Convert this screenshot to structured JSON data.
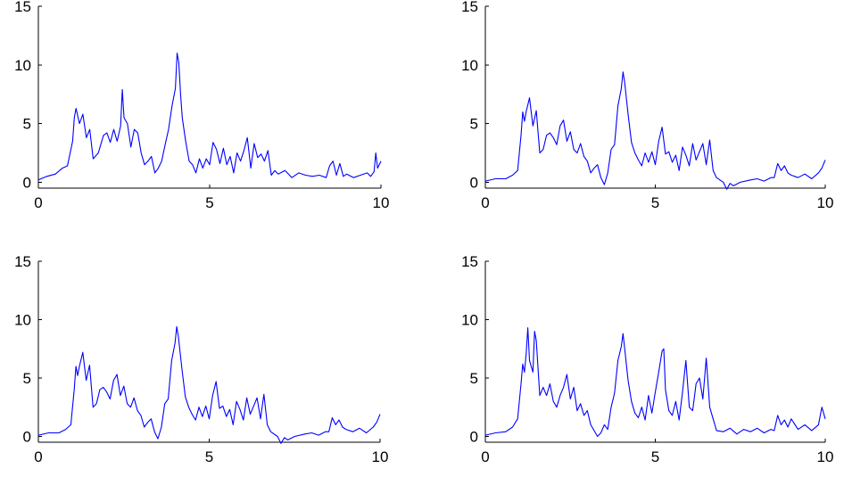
{
  "chart_data": [
    {
      "type": "line",
      "xlim": [
        0,
        10
      ],
      "ylim": [
        -0.5,
        15
      ],
      "xticks": [
        0,
        5,
        10
      ],
      "yticks": [
        0,
        5,
        10,
        15
      ],
      "grid": false,
      "series": [
        {
          "color": "#0000ff",
          "x": [
            0,
            0.25,
            0.5,
            0.7,
            0.85,
            1.0,
            1.05,
            1.1,
            1.2,
            1.3,
            1.4,
            1.5,
            1.6,
            1.75,
            1.9,
            2.0,
            2.1,
            2.2,
            2.3,
            2.4,
            2.45,
            2.5,
            2.6,
            2.7,
            2.8,
            2.9,
            3.0,
            3.1,
            3.2,
            3.3,
            3.4,
            3.5,
            3.6,
            3.7,
            3.8,
            3.9,
            4.0,
            4.05,
            4.1,
            4.15,
            4.2,
            4.3,
            4.4,
            4.5,
            4.6,
            4.7,
            4.8,
            4.9,
            5.0,
            5.1,
            5.2,
            5.3,
            5.4,
            5.5,
            5.6,
            5.7,
            5.8,
            5.9,
            6.0,
            6.1,
            6.2,
            6.3,
            6.4,
            6.5,
            6.6,
            6.7,
            6.8,
            6.9,
            7.0,
            7.2,
            7.4,
            7.6,
            7.8,
            8.0,
            8.2,
            8.4,
            8.5,
            8.6,
            8.7,
            8.8,
            8.9,
            9.0,
            9.2,
            9.4,
            9.6,
            9.7,
            9.8,
            9.85,
            9.9,
            10.0
          ],
          "y": [
            0.2,
            0.5,
            0.7,
            1.2,
            1.4,
            3.5,
            5.5,
            6.3,
            5.0,
            5.8,
            3.8,
            4.5,
            2.0,
            2.5,
            4.0,
            4.2,
            3.4,
            4.5,
            3.5,
            4.8,
            7.9,
            5.5,
            5.0,
            3.0,
            4.5,
            4.2,
            2.5,
            1.5,
            1.8,
            2.2,
            0.8,
            1.2,
            1.8,
            3.2,
            4.5,
            6.5,
            8.0,
            11.0,
            10.2,
            7.5,
            5.5,
            3.5,
            1.8,
            1.5,
            0.8,
            2.0,
            1.2,
            2.0,
            1.5,
            3.4,
            2.8,
            1.6,
            2.9,
            1.5,
            2.2,
            0.8,
            2.5,
            1.8,
            2.7,
            3.8,
            1.2,
            3.3,
            2.1,
            2.4,
            1.8,
            2.7,
            0.6,
            1.0,
            0.7,
            1.0,
            0.4,
            0.8,
            0.6,
            0.5,
            0.6,
            0.4,
            1.4,
            1.8,
            0.6,
            1.6,
            0.5,
            0.7,
            0.4,
            0.6,
            0.8,
            0.5,
            0.9,
            2.5,
            1.2,
            1.8
          ]
        }
      ]
    },
    {
      "type": "line",
      "xlim": [
        0,
        10
      ],
      "ylim": [
        -0.5,
        15
      ],
      "xticks": [
        0,
        5,
        10
      ],
      "yticks": [
        0,
        5,
        10,
        15
      ],
      "grid": false,
      "series": [
        {
          "color": "#0000ff",
          "x": [
            0,
            0.3,
            0.6,
            0.8,
            0.95,
            1.05,
            1.1,
            1.15,
            1.2,
            1.3,
            1.4,
            1.5,
            1.6,
            1.7,
            1.8,
            1.9,
            2.0,
            2.1,
            2.2,
            2.3,
            2.4,
            2.5,
            2.6,
            2.7,
            2.8,
            2.9,
            3.0,
            3.1,
            3.2,
            3.3,
            3.4,
            3.5,
            3.6,
            3.7,
            3.8,
            3.9,
            4.0,
            4.05,
            4.1,
            4.2,
            4.3,
            4.4,
            4.5,
            4.6,
            4.7,
            4.8,
            4.9,
            5.0,
            5.1,
            5.2,
            5.3,
            5.4,
            5.5,
            5.6,
            5.7,
            5.8,
            5.9,
            6.0,
            6.1,
            6.2,
            6.3,
            6.4,
            6.5,
            6.6,
            6.7,
            6.8,
            7.0,
            7.1,
            7.2,
            7.3,
            7.5,
            7.8,
            8.0,
            8.2,
            8.4,
            8.5,
            8.6,
            8.7,
            8.8,
            8.9,
            9.0,
            9.2,
            9.4,
            9.6,
            9.8,
            9.9,
            10.0
          ],
          "y": [
            0.1,
            0.3,
            0.3,
            0.6,
            1.0,
            4.0,
            6.0,
            5.2,
            6.0,
            7.2,
            4.8,
            6.1,
            2.5,
            2.8,
            4.0,
            4.2,
            3.8,
            3.2,
            4.8,
            5.3,
            3.5,
            4.3,
            2.8,
            2.5,
            3.3,
            2.2,
            1.8,
            0.8,
            1.2,
            1.5,
            0.4,
            -0.2,
            0.8,
            2.8,
            3.2,
            6.5,
            8.0,
            9.4,
            8.5,
            5.8,
            3.4,
            2.5,
            1.9,
            1.4,
            2.5,
            1.7,
            2.6,
            1.5,
            3.5,
            4.7,
            2.4,
            2.6,
            1.7,
            2.3,
            1.0,
            3.0,
            2.3,
            1.4,
            3.3,
            1.9,
            2.6,
            3.3,
            1.5,
            3.6,
            1.0,
            0.4,
            0.0,
            -0.6,
            -0.1,
            -0.3,
            0.0,
            0.2,
            0.3,
            0.1,
            0.4,
            0.4,
            1.6,
            1.0,
            1.4,
            0.8,
            0.6,
            0.4,
            0.7,
            0.3,
            0.8,
            1.2,
            1.9
          ]
        }
      ]
    },
    {
      "type": "line",
      "xlim": [
        0,
        10
      ],
      "ylim": [
        -0.5,
        15
      ],
      "xticks": [
        0,
        5,
        10
      ],
      "yticks": [
        0,
        5,
        10,
        15
      ],
      "grid": false,
      "series": [
        {
          "color": "#0000ff",
          "x": [
            0,
            0.3,
            0.6,
            0.8,
            0.95,
            1.05,
            1.1,
            1.15,
            1.2,
            1.3,
            1.4,
            1.5,
            1.6,
            1.7,
            1.8,
            1.9,
            2.0,
            2.1,
            2.2,
            2.3,
            2.4,
            2.5,
            2.6,
            2.7,
            2.8,
            2.9,
            3.0,
            3.1,
            3.2,
            3.3,
            3.4,
            3.5,
            3.6,
            3.7,
            3.8,
            3.9,
            4.0,
            4.05,
            4.1,
            4.2,
            4.3,
            4.4,
            4.5,
            4.6,
            4.7,
            4.8,
            4.9,
            5.0,
            5.1,
            5.2,
            5.3,
            5.4,
            5.5,
            5.6,
            5.7,
            5.8,
            5.9,
            6.0,
            6.1,
            6.2,
            6.3,
            6.4,
            6.5,
            6.6,
            6.7,
            6.8,
            7.0,
            7.1,
            7.2,
            7.3,
            7.5,
            7.8,
            8.0,
            8.2,
            8.4,
            8.5,
            8.6,
            8.7,
            8.8,
            8.9,
            9.0,
            9.2,
            9.4,
            9.6,
            9.8,
            9.9,
            10.0
          ],
          "y": [
            0.1,
            0.3,
            0.3,
            0.6,
            1.0,
            4.0,
            6.0,
            5.2,
            6.0,
            7.2,
            4.8,
            6.1,
            2.5,
            2.8,
            4.0,
            4.2,
            3.8,
            3.2,
            4.8,
            5.3,
            3.5,
            4.3,
            2.8,
            2.5,
            3.3,
            2.2,
            1.8,
            0.8,
            1.2,
            1.5,
            0.4,
            -0.2,
            0.8,
            2.8,
            3.2,
            6.5,
            8.0,
            9.4,
            8.5,
            5.8,
            3.4,
            2.5,
            1.9,
            1.4,
            2.5,
            1.7,
            2.6,
            1.5,
            3.5,
            4.7,
            2.4,
            2.6,
            1.7,
            2.3,
            1.0,
            3.0,
            2.3,
            1.4,
            3.3,
            1.9,
            2.6,
            3.3,
            1.5,
            3.6,
            1.0,
            0.4,
            0.0,
            -0.6,
            -0.1,
            -0.3,
            0.0,
            0.2,
            0.3,
            0.1,
            0.4,
            0.4,
            1.6,
            1.0,
            1.4,
            0.8,
            0.6,
            0.4,
            0.7,
            0.3,
            0.8,
            1.2,
            1.9
          ]
        }
      ]
    },
    {
      "type": "line",
      "xlim": [
        0,
        10
      ],
      "ylim": [
        -0.5,
        15
      ],
      "xticks": [
        0,
        5,
        10
      ],
      "yticks": [
        0,
        5,
        10,
        15
      ],
      "grid": false,
      "series": [
        {
          "color": "#0000ff",
          "x": [
            0,
            0.3,
            0.6,
            0.8,
            0.95,
            1.05,
            1.1,
            1.15,
            1.2,
            1.25,
            1.3,
            1.4,
            1.45,
            1.5,
            1.6,
            1.7,
            1.8,
            1.9,
            2.0,
            2.1,
            2.2,
            2.3,
            2.4,
            2.5,
            2.6,
            2.7,
            2.8,
            2.9,
            3.0,
            3.1,
            3.2,
            3.3,
            3.4,
            3.5,
            3.6,
            3.7,
            3.8,
            3.9,
            4.0,
            4.05,
            4.1,
            4.2,
            4.3,
            4.4,
            4.5,
            4.6,
            4.7,
            4.8,
            4.9,
            5.0,
            5.1,
            5.2,
            5.25,
            5.3,
            5.4,
            5.5,
            5.6,
            5.7,
            5.8,
            5.9,
            6.0,
            6.1,
            6.2,
            6.3,
            6.4,
            6.5,
            6.6,
            6.7,
            6.8,
            7.0,
            7.2,
            7.4,
            7.6,
            7.8,
            8.0,
            8.2,
            8.4,
            8.5,
            8.6,
            8.7,
            8.8,
            8.9,
            9.0,
            9.2,
            9.4,
            9.6,
            9.8,
            9.9,
            10.0
          ],
          "y": [
            0.1,
            0.3,
            0.4,
            0.8,
            1.5,
            4.5,
            6.2,
            5.5,
            7.0,
            9.3,
            6.5,
            5.5,
            9.0,
            8.2,
            3.5,
            4.2,
            3.5,
            4.5,
            3.0,
            2.5,
            3.5,
            4.2,
            5.3,
            3.2,
            4.2,
            2.2,
            2.8,
            1.8,
            2.2,
            1.0,
            0.5,
            0.0,
            0.3,
            1.0,
            0.6,
            2.5,
            3.7,
            6.5,
            7.7,
            8.8,
            7.5,
            4.8,
            3.0,
            2.0,
            1.6,
            2.5,
            1.4,
            3.5,
            2.0,
            3.8,
            5.5,
            7.3,
            7.5,
            4.0,
            2.2,
            1.8,
            3.0,
            1.4,
            3.8,
            6.5,
            2.5,
            2.2,
            4.5,
            5.0,
            3.2,
            6.7,
            2.5,
            1.5,
            0.5,
            0.4,
            0.7,
            0.2,
            0.6,
            0.4,
            0.7,
            0.3,
            0.6,
            0.5,
            1.8,
            1.0,
            1.4,
            0.8,
            1.5,
            0.6,
            1.0,
            0.5,
            1.0,
            2.5,
            1.5
          ]
        }
      ]
    }
  ]
}
